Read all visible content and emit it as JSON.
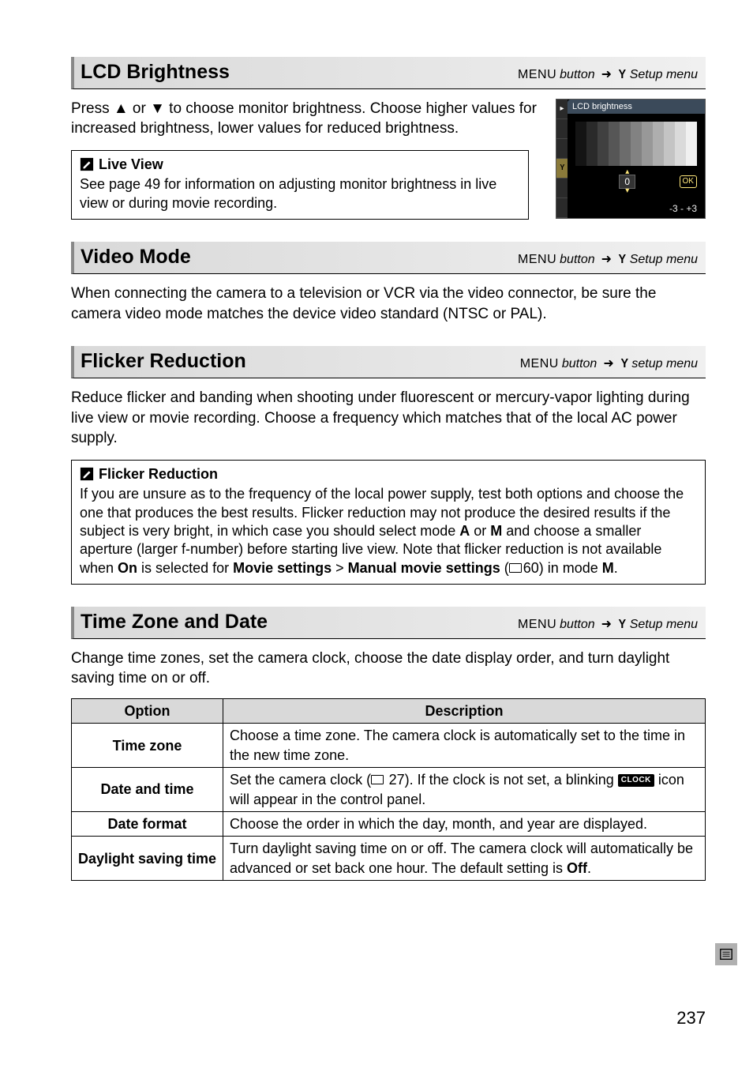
{
  "page_number": "237",
  "crumb": {
    "menu_label": "MENU",
    "button_word": "button",
    "arrow": "➜",
    "wrench_glyph": "Y",
    "setup_label": "Setup menu",
    "setup_label_lc": "setup menu"
  },
  "lcd_brightness": {
    "title": "LCD Brightness",
    "body": "Press ▲ or ▼ to choose monitor brightness.  Choose higher values for increased brightness, lower values for reduced brightness.",
    "screenshot": {
      "topbar_label": "LCD brightness",
      "value": "0",
      "ok_label": "OK",
      "range_label": "-3 - +3",
      "gradient_steps": [
        "#141414",
        "#2a2a2a",
        "#404040",
        "#565656",
        "#6c6c6c",
        "#828282",
        "#989898",
        "#aeaeae",
        "#c4c4c4",
        "#dadada",
        "#f0f0f0"
      ]
    },
    "note_title": "Live View",
    "note_body": "See page 49 for information on adjusting monitor brightness in live view or during movie recording."
  },
  "video_mode": {
    "title": "Video Mode",
    "body": "When connecting the camera to a television or VCR via the video connector, be sure the camera video mode matches the device video standard (NTSC or PAL)."
  },
  "flicker": {
    "title": "Flicker Reduction",
    "body": "Reduce flicker and banding when shooting under fluorescent or mercury-vapor lighting during live view or movie recording.  Choose a frequency which matches that of the local AC power supply.",
    "note_title": "Flicker Reduction",
    "note_body_pre": "If you are unsure as to the frequency of the local power supply, test both options and choose the one that produces the best results.  Flicker reduction may not produce the desired results if the subject is very bright, in which case you should select mode ",
    "mode_a": "A",
    "note_or": " or ",
    "mode_m": "M",
    "note_body_mid": " and choose a smaller aperture (larger f-number) before starting live view. Note that flicker reduction is not available when ",
    "on_word": "On",
    "is_selected": " is selected for ",
    "movie_settings": "Movie settings",
    "gt": " > ",
    "manual_movie": "Manual movie settings",
    "page60_open": " (",
    "page60": "60",
    "page60_close": ") in mode ",
    "mode_m2": "M",
    "period": "."
  },
  "tz": {
    "title": "Time Zone and Date",
    "body": "Change time zones, set the camera clock, choose the date display order, and turn daylight saving time on or off.",
    "headers": {
      "option": "Option",
      "description": "Description"
    },
    "rows": [
      {
        "name": "Time zone",
        "desc": "Choose a time zone.  The camera clock is automatically set to the time in the new time zone."
      },
      {
        "name": "Date and time",
        "desc_pre": "Set the camera clock (",
        "page": "27",
        "desc_mid": ").  If the clock is not set, a blinking ",
        "clock_badge": "CLOCK",
        "desc_post": " icon will appear in the control panel."
      },
      {
        "name": "Date format",
        "desc": "Choose the order in which the day, month, and year are displayed."
      },
      {
        "name": "Daylight saving time",
        "desc_pre": "Turn daylight saving time on or off.  The camera clock will automatically be advanced or set back one hour.  The default setting is ",
        "off_word": "Off",
        "period": "."
      }
    ]
  }
}
